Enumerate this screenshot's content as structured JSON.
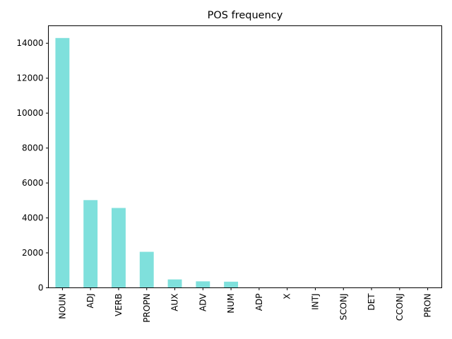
{
  "chart_data": {
    "type": "bar",
    "title": "POS frequency",
    "xlabel": "",
    "ylabel": "",
    "categories": [
      "NOUN",
      "ADJ",
      "VERB",
      "PROPN",
      "AUX",
      "ADV",
      "NUM",
      "ADP",
      "X",
      "INTJ",
      "SCONJ",
      "DET",
      "CCONJ",
      "PRON"
    ],
    "values": [
      14300,
      5020,
      4570,
      2060,
      480,
      370,
      350,
      12,
      8,
      6,
      5,
      4,
      3,
      2
    ],
    "ylim": [
      0,
      15000
    ],
    "yticks": [
      "0",
      "2000",
      "4000",
      "6000",
      "8000",
      "10000",
      "12000",
      "14000"
    ],
    "bar_color": "#7FE0DC",
    "grid": false,
    "legend": "none"
  }
}
